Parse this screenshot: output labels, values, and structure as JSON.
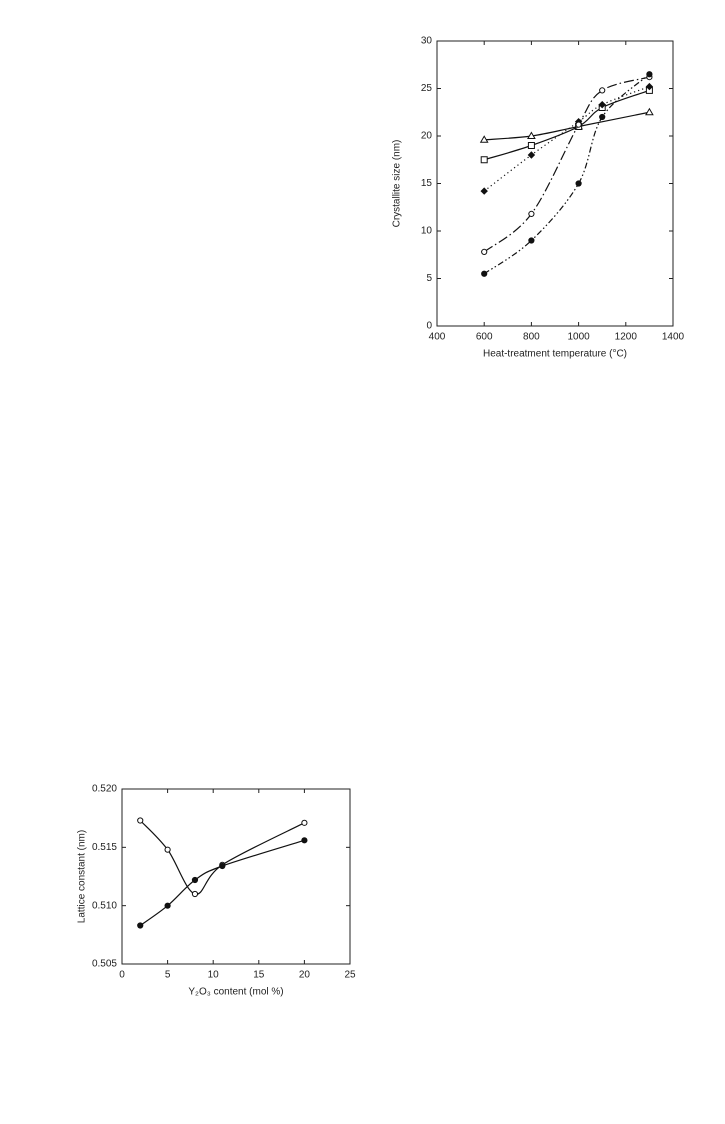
{
  "chart_data": [
    {
      "type": "line",
      "xlabel": "Heat-treatment temperature (°C)",
      "ylabel": "Crystallite size (nm)",
      "xlim": [
        400,
        1400
      ],
      "xticks": [
        400,
        600,
        800,
        1000,
        1200,
        1400
      ],
      "ylim": [
        0,
        30
      ],
      "yticks": [
        0,
        5,
        10,
        15,
        20,
        25,
        30
      ],
      "color": "#111111",
      "series": [
        {
          "marker": "triangle-open",
          "line_style": "solid",
          "x": [
            600,
            800,
            1000,
            1300
          ],
          "values": [
            19.6,
            20.0,
            21.0,
            22.5
          ]
        },
        {
          "marker": "square-open",
          "line_style": "solid",
          "x": [
            600,
            800,
            1000,
            1100,
            1300
          ],
          "values": [
            17.5,
            19.0,
            21.0,
            23.0,
            24.8
          ]
        },
        {
          "marker": "diamond-filled",
          "line_style": "dotted",
          "x": [
            600,
            800,
            1000,
            1100,
            1300
          ],
          "values": [
            14.2,
            18.0,
            21.5,
            23.3,
            25.2
          ]
        },
        {
          "marker": "circle-open",
          "line_style": "dashdot",
          "x": [
            600,
            800,
            1000,
            1100,
            1300
          ],
          "values": [
            7.8,
            11.8,
            21.2,
            24.8,
            26.2
          ]
        },
        {
          "marker": "circle-filled",
          "line_style": "dashdotdot",
          "x": [
            600,
            800,
            1000,
            1100,
            1300
          ],
          "values": [
            5.5,
            9.0,
            15.0,
            22.0,
            26.5
          ]
        }
      ]
    },
    {
      "type": "line",
      "xlabel": "Y₂O₃ content (mol %)",
      "ylabel": "Lattice constant (nm)",
      "xlim": [
        0,
        25
      ],
      "xticks": [
        0,
        5,
        10,
        15,
        20,
        25
      ],
      "ylim": [
        0.505,
        0.52
      ],
      "yticks": [
        0.505,
        {
          "value": 0.51,
          "label": "0.510"
        },
        0.515,
        {
          "value": 0.52,
          "label": "0.520"
        }
      ],
      "color": "#111111",
      "series": [
        {
          "marker": "circle-open",
          "line_style": "solid",
          "x": [
            2,
            5,
            8,
            11,
            20
          ],
          "values": [
            0.5173,
            0.5148,
            0.511,
            0.5135,
            0.5171
          ]
        },
        {
          "marker": "circle-filled",
          "line_style": "solid",
          "x": [
            2,
            5,
            8,
            11,
            20
          ],
          "values": [
            0.5083,
            0.51,
            0.5122,
            0.5134,
            0.5156
          ]
        }
      ]
    }
  ]
}
